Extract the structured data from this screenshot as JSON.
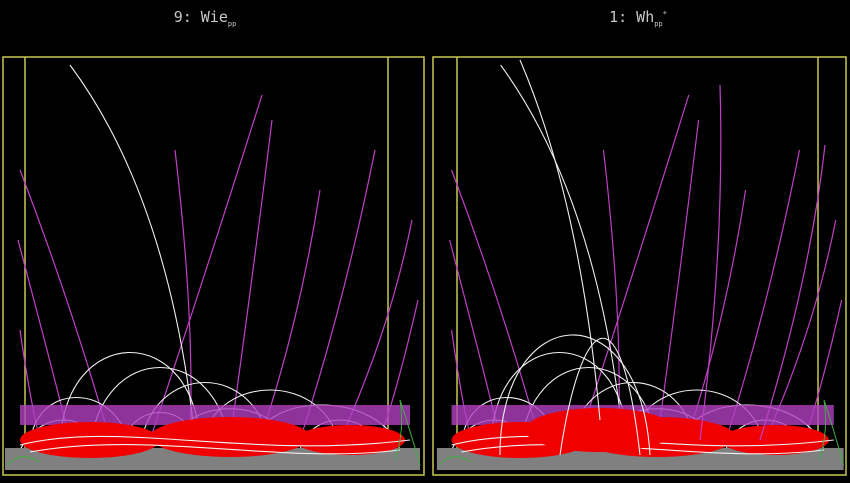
{
  "panels": [
    {
      "label": "9: Wie",
      "subscript": "pp"
    },
    {
      "label": "1: Wh",
      "subscript": "pp",
      "superscript": "+"
    }
  ]
}
